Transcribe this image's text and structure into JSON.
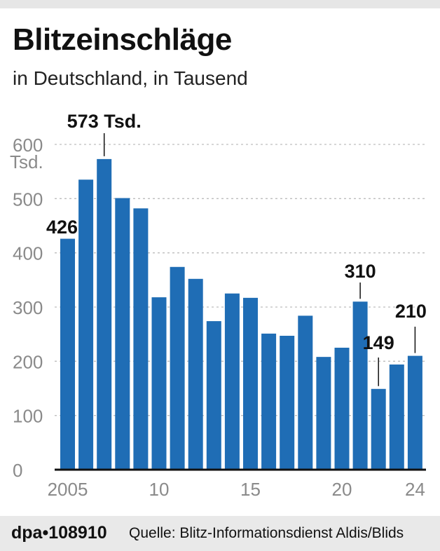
{
  "title": "Blitzeinschläge",
  "subtitle": "in Deutschland, in Tausend",
  "footer": {
    "code": "dpa•108910",
    "source": "Quelle: Blitz-Informationsdienst Aldis/Blids"
  },
  "colors": {
    "bar": "#1f6db5",
    "grid": "#bdbdbd",
    "axis": "#111111",
    "tick_text": "#8a8a8a"
  },
  "chart_data": {
    "type": "bar",
    "x": [
      2005,
      2006,
      2007,
      2008,
      2009,
      2010,
      2011,
      2012,
      2013,
      2014,
      2015,
      2016,
      2017,
      2018,
      2019,
      2020,
      2021,
      2022,
      2023,
      2024
    ],
    "values": [
      426,
      535,
      573,
      501,
      482,
      318,
      374,
      352,
      274,
      325,
      317,
      251,
      247,
      284,
      208,
      225,
      310,
      149,
      194,
      210
    ],
    "ylim": [
      0,
      600
    ],
    "yticks": [
      0,
      100,
      200,
      300,
      400,
      500,
      600
    ],
    "y_unit_label": "Tsd.",
    "xtick_labels": [
      {
        "year": 2005,
        "label": "2005"
      },
      {
        "year": 2010,
        "label": "10"
      },
      {
        "year": 2015,
        "label": "15"
      },
      {
        "year": 2020,
        "label": "20"
      },
      {
        "year": 2024,
        "label": "24"
      }
    ],
    "annotations": [
      {
        "year": 2005,
        "label": "426",
        "leader": false
      },
      {
        "year": 2007,
        "label": "573 Tsd.",
        "leader": true
      },
      {
        "year": 2021,
        "label": "310",
        "leader": true
      },
      {
        "year": 2022,
        "label": "149",
        "leader": true
      },
      {
        "year": 2024,
        "label": "210",
        "leader": true
      }
    ],
    "grid": "dotted-horizontal"
  }
}
